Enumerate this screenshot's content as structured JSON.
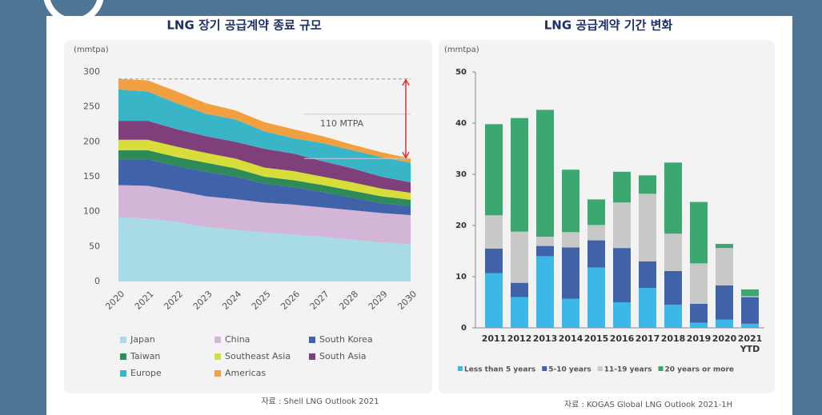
{
  "chart_data": [
    {
      "type": "area",
      "title": "LNG 장기 공급계약 종료 규모",
      "y_label": "(mmtpa)",
      "annotation": "110 MTPA",
      "source": "자료 : Shell LNG Outlook 2021",
      "categories": [
        "2020",
        "2021",
        "2022",
        "2023",
        "2024",
        "2025",
        "2026",
        "2027",
        "2028",
        "2029",
        "2030"
      ],
      "ylim": [
        0,
        300
      ],
      "yticks": [
        0,
        50,
        100,
        150,
        200,
        250,
        300
      ],
      "series": [
        {
          "name": "Japan",
          "color": "#a9dbe6",
          "values": [
            92,
            90,
            85,
            78,
            74,
            70,
            67,
            64,
            60,
            56,
            53
          ]
        },
        {
          "name": "China",
          "color": "#d3b5d8",
          "values": [
            46,
            47,
            45,
            44,
            44,
            43,
            43,
            42,
            42,
            42,
            42
          ]
        },
        {
          "name": "South Korea",
          "color": "#3f62a8",
          "values": [
            37,
            38,
            35,
            35,
            32,
            27,
            25,
            22,
            18,
            14,
            13
          ]
        },
        {
          "name": "Taiwan",
          "color": "#2e8b57",
          "values": [
            13,
            13,
            13,
            13,
            12,
            10,
            10,
            10,
            10,
            10,
            9
          ]
        },
        {
          "name": "Southeast Asia",
          "color": "#d7dd3a",
          "values": [
            15,
            15,
            15,
            14,
            14,
            13,
            13,
            12,
            12,
            11,
            10
          ]
        },
        {
          "name": "South Asia",
          "color": "#7e3f7a",
          "values": [
            27,
            27,
            25,
            24,
            24,
            27,
            25,
            22,
            20,
            17,
            15
          ]
        },
        {
          "name": "Europe",
          "color": "#3ab5c8",
          "values": [
            45,
            42,
            37,
            32,
            32,
            25,
            22,
            26,
            26,
            28,
            28
          ]
        },
        {
          "name": "Americas",
          "color": "#f0a040",
          "values": [
            15,
            16,
            17,
            15,
            13,
            13,
            13,
            10,
            8,
            7,
            6
          ]
        }
      ]
    },
    {
      "type": "bar",
      "title": "LNG 공급계약 기간 변화",
      "y_label": "(mmtpa)",
      "source": "자료 : KOGAS Global LNG Outlook 2021-1H",
      "categories": [
        "2011",
        "2012",
        "2013",
        "2014",
        "2015",
        "2016",
        "2017",
        "2018",
        "2019",
        "2020",
        "2021 YTD"
      ],
      "ylim": [
        0,
        50
      ],
      "yticks": [
        0,
        10,
        20,
        30,
        40,
        50
      ],
      "series": [
        {
          "name": "Less than 5 years",
          "color": "#3bb8e8",
          "values": [
            10.7,
            6,
            14,
            5.7,
            11.8,
            5,
            7.8,
            4.5,
            1,
            1.6,
            0.8
          ]
        },
        {
          "name": "5-10 years",
          "color": "#3f62a8",
          "values": [
            4.8,
            2.8,
            2,
            10,
            5.3,
            10.6,
            5.2,
            6.6,
            3.7,
            6.7,
            5.2
          ]
        },
        {
          "name": "11-19 years",
          "color": "#c8c8c8",
          "values": [
            6.5,
            10,
            1.8,
            3,
            3,
            8.9,
            13.2,
            7.3,
            7.9,
            7.3,
            0.2
          ]
        },
        {
          "name": "20 years or more",
          "color": "#3aa870",
          "values": [
            17.8,
            22.2,
            24.8,
            12.2,
            5,
            6,
            3.6,
            13.9,
            12,
            0.8,
            1.3
          ]
        }
      ]
    }
  ]
}
